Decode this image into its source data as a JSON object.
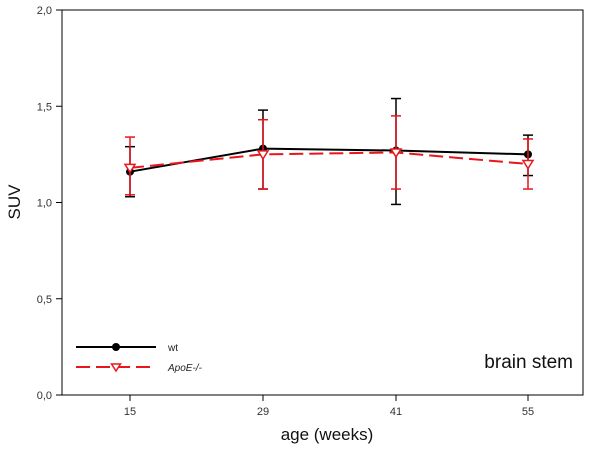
{
  "chart_data": {
    "type": "line",
    "title": "",
    "xlabel": "age (weeks)",
    "ylabel": "SUV",
    "categories": [
      "15",
      "29",
      "41",
      "55"
    ],
    "ylim": [
      0,
      2
    ],
    "yticks": [
      "0,0",
      "0,5",
      "1,0",
      "1,5",
      "2,0"
    ],
    "grid": false,
    "legend_placement": "bottom-left",
    "annotation": "brain stem",
    "series": [
      {
        "name": "wt",
        "color": "#000000",
        "line_style": "solid",
        "marker": "filled-circle",
        "values": [
          1.16,
          1.28,
          1.27,
          1.25
        ],
        "error_upper": [
          1.29,
          1.48,
          1.54,
          1.35
        ],
        "error_lower": [
          1.03,
          1.07,
          0.99,
          1.14
        ]
      },
      {
        "name": "ApoE-/-",
        "color": "#e8161c",
        "line_style": "dashed",
        "marker": "open-triangle-down",
        "values": [
          1.18,
          1.25,
          1.26,
          1.2
        ],
        "error_upper": [
          1.34,
          1.43,
          1.45,
          1.33
        ],
        "error_lower": [
          1.04,
          1.07,
          1.07,
          1.07
        ]
      }
    ]
  }
}
